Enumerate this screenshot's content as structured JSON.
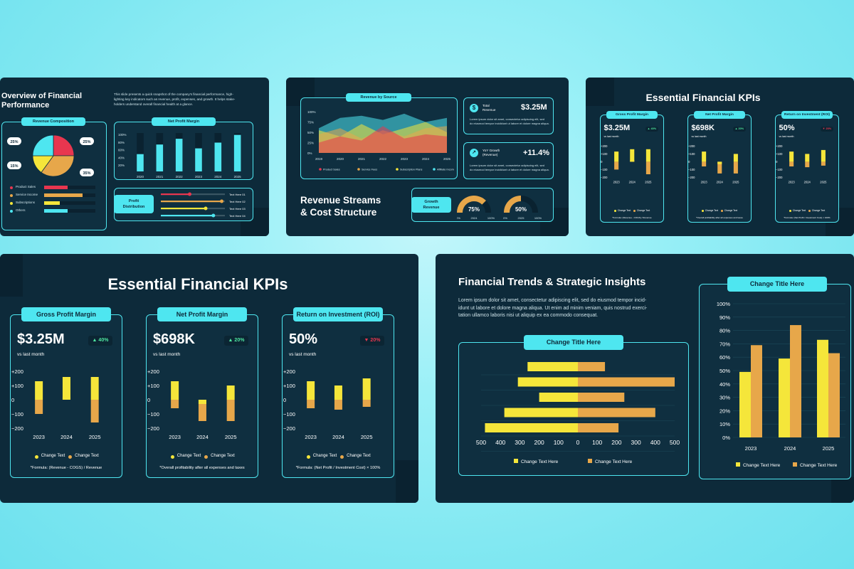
{
  "colors": {
    "yellow": "#f5e63a",
    "orange": "#e7a74a",
    "cyan": "#4ee6f0",
    "red": "#e8364f",
    "navy": "#0d2a3a"
  },
  "slide1": {
    "title": "Overview of Financial Performance",
    "title_l1": "Overview of Financial",
    "title_l2": "Performance",
    "desc_l1": "This slide presents a quick snapshot of the company's financial performance, high-",
    "desc_l2": "lighting key indicators such as revenue, profit, expenses, and growth. It helps stake-",
    "desc_l3": "holders understand overall financial health at a glance.",
    "revenue_composition": "Revenue Composition",
    "pie_labels": [
      "25%",
      "25%",
      "15%",
      "35%"
    ],
    "legend": [
      "Product Sales",
      "Service Income",
      "Subscriptions",
      "Others"
    ],
    "net_profit_margin": "Net Profit Margin",
    "npm_y": [
      "100%",
      "80%",
      "60%",
      "40%",
      "20%"
    ],
    "npm_x": [
      "2020",
      "2021",
      "2022",
      "2023",
      "2024",
      "2025"
    ],
    "profit_distribution_l1": "Profit",
    "profit_distribution_l2": "Distribution",
    "pd_labels": [
      "Text Here 01",
      "Text Here 02",
      "Text Here 03",
      "Text Here 04"
    ]
  },
  "slide2": {
    "revenue_by_source": "Revenue by Source",
    "area_y": [
      "100%",
      "75%",
      "50%",
      "25%",
      "0%"
    ],
    "area_x": [
      "2019",
      "2020",
      "2021",
      "2022",
      "2023",
      "2024",
      "2025"
    ],
    "area_legend": [
      "Product Sales",
      "Service Fees",
      "Subscription Plans",
      "Affiliate Income"
    ],
    "total_label_l1": "Total",
    "total_label_l2": "Revenue",
    "total_value": "$3.25M",
    "total_desc_l1": "Lorem ipsum dolor sit amet, consectetur adipiscing elit, sed",
    "total_desc_l2": "do eiusmod tempor incididunt ut labore et dolore magna aliqua.",
    "yoy_label_l1": "YoY Growth",
    "yoy_label_l2": "(Revenue)",
    "yoy_value": "+11.4%",
    "yoy_desc_l1": "Lorem ipsum dolor sit amet, consectetur adipiscing elit, sed",
    "yoy_desc_l2": "do eiusmod tempor incididunt ut labore et dolore magna aliqua.",
    "title_l1": "Revenue Streams",
    "title_l2": "& Cost Structure",
    "growth_l1": "Growth",
    "growth_l2": "Revenue",
    "gauge1": {
      "value": "75%",
      "min": "0%",
      "year": "2024",
      "max": "100%"
    },
    "gauge2": {
      "value": "50%",
      "min": "0%",
      "year": "2025",
      "max": "100%"
    }
  },
  "kpi": {
    "title": "Essential Financial KPIs",
    "cards": [
      {
        "title": "Gross Profit Margin",
        "value": "$3.25M",
        "badge": "▲ 40%",
        "badge_color": "#4ee6a0",
        "sub": "vs last month",
        "formula": "*Formula: (Revenue - COGS) / Revenue"
      },
      {
        "title": "Net Profit Margin",
        "value": "$698K",
        "badge": "▲ 20%",
        "badge_color": "#4ee6a0",
        "sub": "vs last month",
        "formula": "*Overall profitability after all expenses and taxes"
      },
      {
        "title": "Return on Investment (ROI)",
        "value": "50%",
        "badge": "▼ 20%",
        "badge_color": "#e8364f",
        "sub": "vs last month",
        "formula": "*Formula: (Net Profit / Investment Cost) × 100%"
      }
    ],
    "y_ticks": [
      "+200",
      "+100",
      "0",
      "−100",
      "−200"
    ],
    "x_ticks": [
      "2023",
      "2024",
      "2025"
    ],
    "legend": [
      "Change Text",
      "Change Text"
    ]
  },
  "slide5": {
    "title": "Financial Trends & Strategic Insights",
    "desc_l1": "Lorem ipsum dolor sit amet, consectetur adipiscing elit, sed do eiusmod tempor incid-",
    "desc_l2": "idunt ut labore et dolore magna aliqua. Ut enim ad minim veniam, quis nostrud exerci-",
    "desc_l3": "tation ullamco laboris nisi ut aliquip ex ea commodo consequat.",
    "hbar_title": "Change Title Here",
    "hbar_x": [
      "500",
      "400",
      "300",
      "200",
      "100",
      "0",
      "100",
      "200",
      "300",
      "400",
      "500"
    ],
    "hbar_legend": [
      "Change Text Here",
      "Change Text Here"
    ],
    "vbar_title": "Change Title Here",
    "vbar_y": [
      "100%",
      "90%",
      "80%",
      "70%",
      "60%",
      "50%",
      "40%",
      "30%",
      "20%",
      "10%",
      "0%"
    ],
    "vbar_x": [
      "2023",
      "2024",
      "2025"
    ],
    "vbar_legend": [
      "Change Text Here",
      "Change Text Here"
    ]
  },
  "chart_data": [
    {
      "type": "pie",
      "title": "Revenue Composition",
      "categories": [
        "Product Sales",
        "Service Income",
        "Subscriptions",
        "Others"
      ],
      "values": [
        25,
        35,
        15,
        25
      ]
    },
    {
      "type": "bar",
      "title": "Net Profit Margin",
      "categories": [
        "2020",
        "2021",
        "2022",
        "2023",
        "2024",
        "2025"
      ],
      "values": [
        45,
        70,
        85,
        60,
        75,
        95
      ],
      "ylim": [
        0,
        100
      ]
    },
    {
      "type": "bar",
      "title": "Gross Profit Margin",
      "categories": [
        "2023",
        "2024",
        "2025"
      ],
      "series": [
        {
          "values": [
            130,
            160,
            160
          ]
        },
        {
          "values": [
            -100,
            20,
            -160
          ]
        }
      ],
      "ylim": [
        -200,
        200
      ]
    },
    {
      "type": "bar",
      "title": "Net Profit Margin",
      "categories": [
        "2023",
        "2024",
        "2025"
      ],
      "series": [
        {
          "values": [
            130,
            -30,
            100
          ]
        },
        {
          "values": [
            -60,
            -150,
            -150
          ]
        }
      ],
      "ylim": [
        -200,
        200
      ]
    },
    {
      "type": "bar",
      "title": "Return on Investment (ROI)",
      "categories": [
        "2023",
        "2024",
        "2025"
      ],
      "series": [
        {
          "values": [
            130,
            100,
            150
          ]
        },
        {
          "values": [
            -60,
            -70,
            -50
          ]
        }
      ],
      "ylim": [
        -200,
        200
      ]
    },
    {
      "type": "bar",
      "title": "Change Title Here",
      "orientation": "horizontal",
      "series": [
        {
          "values": [
            -260,
            -310,
            -200,
            -380,
            -480
          ]
        },
        {
          "values": [
            140,
            500,
            240,
            400,
            210
          ]
        }
      ],
      "xlim": [
        -500,
        500
      ]
    },
    {
      "type": "bar",
      "title": "Change Title Here",
      "categories": [
        "2023",
        "2024",
        "2025"
      ],
      "series": [
        {
          "values": [
            49,
            59,
            73
          ]
        },
        {
          "values": [
            69,
            84,
            63
          ]
        }
      ],
      "ylim": [
        0,
        100
      ]
    }
  ]
}
